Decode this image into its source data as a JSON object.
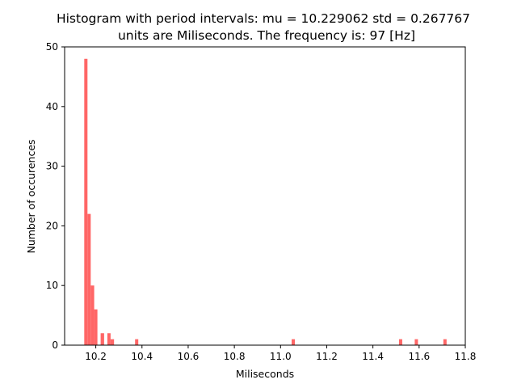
{
  "chart_data": {
    "type": "bar",
    "title_lines": [
      "Histogram with period intervals: mu = 10.229062  std = 0.267767",
      "units are Miliseconds. The frequency is: 97 [Hz]"
    ],
    "xlabel": "Miliseconds",
    "ylabel": "Number of occurences",
    "xlim": [
      10.065,
      11.8
    ],
    "ylim": [
      0,
      50
    ],
    "xticks": [
      "10.2",
      "10.4",
      "10.6",
      "10.8",
      "11.0",
      "11.2",
      "11.4",
      "11.6",
      "11.8"
    ],
    "xtick_values": [
      10.2,
      10.4,
      10.6,
      10.8,
      11.0,
      11.2,
      11.4,
      11.6,
      11.8
    ],
    "yticks": [
      "0",
      "10",
      "20",
      "30",
      "40",
      "50"
    ],
    "ytick_values": [
      0,
      10,
      20,
      30,
      40,
      50
    ],
    "bar_color": "#ff6666",
    "grid": false,
    "series": [
      {
        "bins": [
          {
            "x0": 10.15,
            "x1": 10.164,
            "count": 48
          },
          {
            "x0": 10.164,
            "x1": 10.178,
            "count": 22
          },
          {
            "x0": 10.178,
            "x1": 10.193,
            "count": 10
          },
          {
            "x0": 10.193,
            "x1": 10.207,
            "count": 6
          },
          {
            "x0": 10.221,
            "x1": 10.236,
            "count": 2
          },
          {
            "x0": 10.25,
            "x1": 10.264,
            "count": 2
          },
          {
            "x0": 10.264,
            "x1": 10.279,
            "count": 1
          },
          {
            "x0": 10.37,
            "x1": 10.384,
            "count": 1
          },
          {
            "x0": 11.048,
            "x1": 11.062,
            "count": 1
          },
          {
            "x0": 11.513,
            "x1": 11.527,
            "count": 1
          },
          {
            "x0": 11.581,
            "x1": 11.595,
            "count": 1
          },
          {
            "x0": 11.705,
            "x1": 11.719,
            "count": 1
          }
        ]
      }
    ]
  }
}
